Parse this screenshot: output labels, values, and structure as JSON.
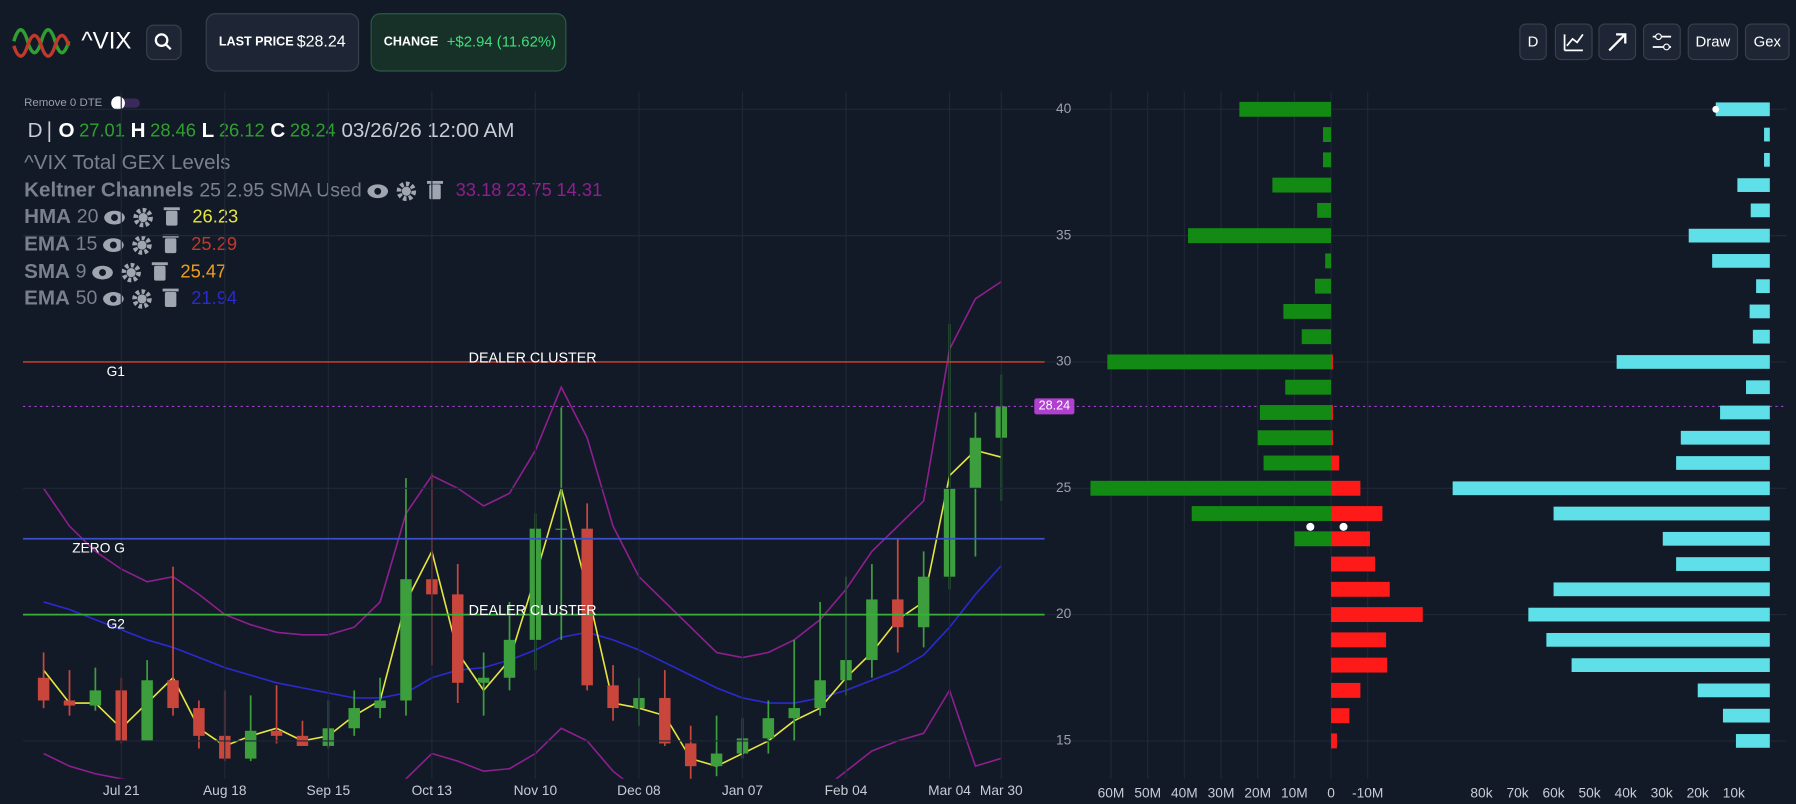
{
  "header": {
    "symbol": "^VIX",
    "last_price_label": "LAST PRICE",
    "last_price": "$28.24",
    "change_label": "CHANGE",
    "change": "+$2.94 (11.62%)",
    "buttons": [
      "D",
      "Draw",
      "Gex"
    ]
  },
  "toggle_label": "Remove 0 DTE",
  "ohlc": {
    "interval": "D",
    "o_label": "O",
    "o": 27.01,
    "h_label": "H",
    "h": 28.46,
    "l_label": "L",
    "l": 26.12,
    "c_label": "C",
    "c": 28.24,
    "timestamp": "03/26/26 12:00 AM"
  },
  "indicators": [
    {
      "name": "^VIX Total GEX Levels"
    },
    {
      "name": "Keltner Channels",
      "params": "25 2.95 SMA Used",
      "values": [
        33.18,
        23.75,
        14.31
      ],
      "color": "#8e1f8e"
    },
    {
      "name": "HMA",
      "params": 20,
      "values": [
        26.23
      ],
      "color": "#e6e640"
    },
    {
      "name": "EMA",
      "params": 15,
      "values": [
        25.29
      ],
      "color": "#c0392b"
    },
    {
      "name": "SMA",
      "params": 9,
      "values": [
        25.47
      ],
      "color": "#f0a020"
    },
    {
      "name": "EMA",
      "params": 50,
      "values": [
        21.94
      ],
      "color": "#2a2ad0"
    }
  ],
  "price_chart": {
    "type": "candlestick",
    "categories": [
      null,
      null,
      null,
      "Jul 21",
      null,
      null,
      null,
      "Aug 18",
      null,
      null,
      null,
      "Sep 15",
      null,
      null,
      null,
      "Oct 13",
      null,
      null,
      null,
      "Nov 10",
      null,
      null,
      null,
      "Dec 08",
      null,
      null,
      null,
      "Jan 07",
      null,
      null,
      null,
      "Feb 04",
      null,
      null,
      null,
      "Mar 04",
      null,
      "Mar 30"
    ],
    "open": [
      17.5,
      16.6,
      16.4,
      17.0,
      15.0,
      17.4,
      16.3,
      15.2,
      14.3,
      15.4,
      15.2,
      14.8,
      15.5,
      16.3,
      16.6,
      21.4,
      20.8,
      17.3,
      17.5,
      19.0,
      23.4,
      23.4,
      17.2,
      16.3,
      16.7,
      14.9,
      14.0,
      14.5,
      15.1,
      15.9,
      16.3,
      17.4,
      18.2,
      20.6,
      19.5,
      21.5,
      25.0,
      27.0
    ],
    "high": [
      18.5,
      17.8,
      17.9,
      17.5,
      18.2,
      21.9,
      16.6,
      17.0,
      16.8,
      17.2,
      15.8,
      16.6,
      17.0,
      17.5,
      25.4,
      25.6,
      22.0,
      18.5,
      20.5,
      24.0,
      28.2,
      24.4,
      18.0,
      17.5,
      17.8,
      15.6,
      16.0,
      15.9,
      16.6,
      19.0,
      20.5,
      21.5,
      22.0,
      23.0,
      22.5,
      31.5,
      28.0,
      29.5
    ],
    "low": [
      16.3,
      16.0,
      16.2,
      14.9,
      15.0,
      16.0,
      14.7,
      14.2,
      14.2,
      14.9,
      14.8,
      14.7,
      15.2,
      15.9,
      16.0,
      18.0,
      16.5,
      16.0,
      17.0,
      17.8,
      19.0,
      17.0,
      15.8,
      15.6,
      14.8,
      13.4,
      13.6,
      14.3,
      14.5,
      15.0,
      16.0,
      16.8,
      17.5,
      18.5,
      18.7,
      21.0,
      22.3,
      24.5
    ],
    "close": [
      16.6,
      16.4,
      17.0,
      15.0,
      17.4,
      16.3,
      15.2,
      14.3,
      15.4,
      15.2,
      14.8,
      15.5,
      16.3,
      16.6,
      21.4,
      20.8,
      17.3,
      17.5,
      19.0,
      23.4,
      23.4,
      17.2,
      16.3,
      16.7,
      14.9,
      14.0,
      14.5,
      15.1,
      15.9,
      16.3,
      17.4,
      18.2,
      20.6,
      19.5,
      21.5,
      25.0,
      27.0,
      28.24
    ],
    "up_color": "#3d9e3d",
    "down_color": "#c9463d",
    "series": [
      {
        "color": "#8e1f8e",
        "values": [
          25.0,
          23.5,
          22.5,
          21.8,
          21.3,
          21.5,
          20.8,
          20.0,
          19.6,
          19.3,
          19.2,
          19.2,
          19.5,
          20.5,
          24.0,
          25.5,
          25.0,
          24.3,
          24.8,
          26.5,
          29.0,
          27.0,
          23.5,
          21.5,
          20.5,
          19.5,
          18.5,
          18.3,
          18.5,
          19.0,
          19.8,
          21.0,
          22.5,
          23.5,
          24.5,
          30.5,
          32.5,
          33.18
        ]
      },
      {
        "color": "#8e1f8e",
        "values": [
          14.5,
          14.0,
          13.7,
          13.5,
          13.3,
          13.3,
          13.0,
          12.8,
          12.7,
          12.6,
          12.5,
          12.6,
          12.7,
          13.0,
          13.5,
          14.5,
          14.2,
          13.8,
          13.9,
          14.5,
          15.5,
          15.0,
          13.8,
          13.0,
          12.6,
          12.2,
          11.9,
          11.8,
          12.0,
          12.4,
          13.0,
          13.8,
          14.6,
          15.0,
          15.3,
          17.0,
          14.0,
          14.31
        ]
      },
      {
        "color": "#2a2ad0",
        "values": [
          20.5,
          20.2,
          19.8,
          19.4,
          19.0,
          18.7,
          18.3,
          17.9,
          17.6,
          17.3,
          17.1,
          16.9,
          16.7,
          16.7,
          16.9,
          17.5,
          17.8,
          17.9,
          18.2,
          18.6,
          19.1,
          19.3,
          19.0,
          18.6,
          18.1,
          17.6,
          17.1,
          16.7,
          16.5,
          16.5,
          16.7,
          17.0,
          17.4,
          17.8,
          18.4,
          19.5,
          20.8,
          21.94
        ]
      },
      {
        "color": "#e6e640",
        "values": [
          17.8,
          16.5,
          16.5,
          15.5,
          16.5,
          17.5,
          15.5,
          14.8,
          15.2,
          15.5,
          15.0,
          15.2,
          16.0,
          16.6,
          20.5,
          22.5,
          18.5,
          17.0,
          18.2,
          21.5,
          25.0,
          21.0,
          16.5,
          16.3,
          16.0,
          14.3,
          14.0,
          14.5,
          15.0,
          15.8,
          16.3,
          17.5,
          18.5,
          19.8,
          20.5,
          25.5,
          26.5,
          26.23
        ]
      }
    ],
    "levels": [
      {
        "label": "G1",
        "value": 30,
        "color": "#c0392b",
        "annotation": "DEALER CLUSTER"
      },
      {
        "label": "ZERO G",
        "value": 23,
        "color": "#3a4fc8"
      },
      {
        "label": "G2",
        "value": 20,
        "color": "#3ab03a",
        "annotation": "DEALER CLUSTER"
      }
    ],
    "current_price": 28.24,
    "ylim": [
      13.5,
      40.7
    ],
    "yticks": [
      15,
      20,
      25,
      30,
      35,
      40
    ],
    "grid": true
  },
  "gex_chart": {
    "type": "bar",
    "orientation": "horizontal",
    "y": [
      40,
      39,
      38,
      37,
      36,
      35,
      34,
      33,
      32,
      31,
      30,
      29,
      28,
      27,
      26,
      25,
      24,
      23,
      22,
      21,
      20,
      19,
      18,
      17,
      16,
      15
    ],
    "series": [
      {
        "color": "#138a13",
        "values": [
          25,
          2.2,
          2.2,
          16,
          3.8,
          39,
          1.6,
          4.4,
          13,
          8,
          61,
          12.5,
          19.4,
          20,
          18.4,
          65.6,
          38,
          10,
          0,
          0,
          0,
          0,
          0,
          0,
          0,
          0
        ]
      },
      {
        "color": "#ff1a1a",
        "values": [
          0,
          0,
          0,
          0,
          0,
          0,
          0,
          0,
          0,
          0,
          -0.5,
          0,
          -0.5,
          -0.5,
          -2.2,
          -8,
          -14,
          -10.6,
          -12,
          -16,
          -25,
          -15,
          -15.3,
          -8,
          -5,
          -1.6
        ]
      }
    ],
    "xlim": [
      67.8,
      -29
    ],
    "ylim": [
      13.5,
      40.7
    ],
    "xticks": [
      {
        "value": 60,
        "label": "60M"
      },
      {
        "value": 50,
        "label": "50M"
      },
      {
        "value": 40,
        "label": "40M"
      },
      {
        "value": 30,
        "label": "30M"
      },
      {
        "value": 20,
        "label": "20M"
      },
      {
        "value": 10,
        "label": "10M"
      },
      0,
      {
        "value": -10,
        "label": "-10M"
      }
    ]
  },
  "oi_chart": {
    "type": "bar",
    "orientation": "horizontal",
    "y": [
      40,
      39,
      38,
      37,
      36,
      35,
      34,
      33,
      32,
      31,
      30,
      29,
      28,
      27,
      26,
      25,
      24,
      23,
      22,
      21,
      20,
      19,
      18,
      17,
      16,
      15
    ],
    "values": [
      15,
      1.6,
      1.6,
      9,
      5.3,
      22.5,
      16,
      3.8,
      5.6,
      4.7,
      42.5,
      6.6,
      13.8,
      24.7,
      26,
      88,
      60,
      29.7,
      26,
      60,
      67,
      62,
      55,
      20,
      13,
      9.4
    ],
    "color": "#5fe0e8",
    "xlim": [
      90,
      -4.7
    ],
    "ylim": [
      13.5,
      40.7
    ],
    "xticks": [
      {
        "value": 80,
        "label": "80k"
      },
      {
        "value": 70,
        "label": "70k"
      },
      {
        "value": 60,
        "label": "60k"
      },
      {
        "value": 50,
        "label": "50k"
      },
      {
        "value": 40,
        "label": "40k"
      },
      {
        "value": 30,
        "label": "30k"
      },
      {
        "value": 20,
        "label": "20k"
      },
      {
        "value": 10,
        "label": "10k"
      }
    ]
  }
}
